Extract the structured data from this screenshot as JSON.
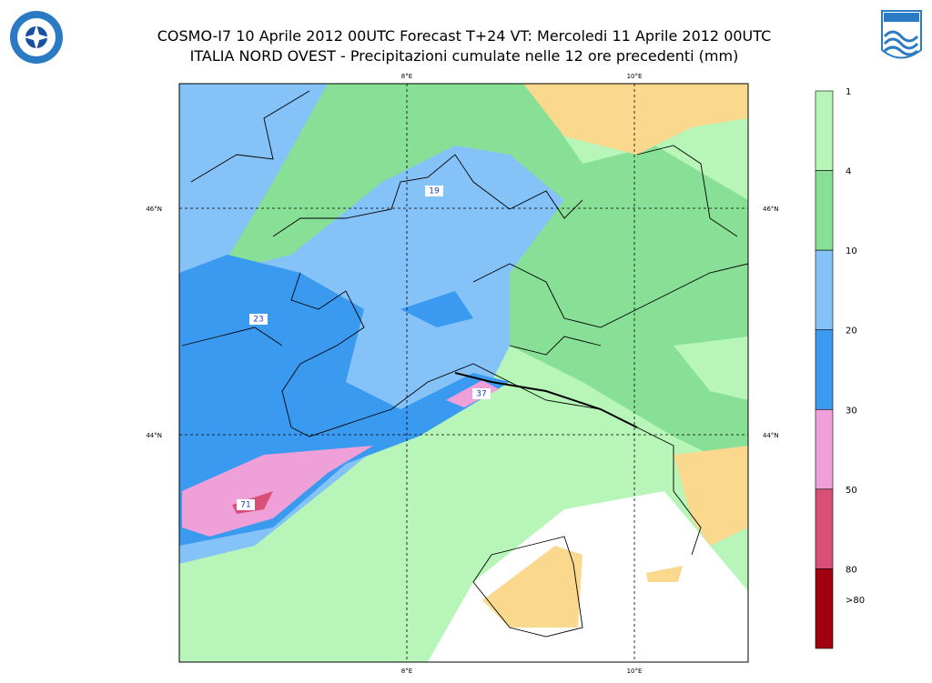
{
  "header": {
    "title_line_1": "COSMO-I7 10 Aprile 2012 00UTC Forecast T+24 VT: Mercoledi 11 Aprile 2012 00UTC",
    "title_line_2": "ITALIA NORD OVEST - Precipitazioni cumulate nelle 12 ore precedenti (mm)"
  },
  "map": {
    "longitudes": [
      "8°E",
      "10°E"
    ],
    "latitudes": [
      "46°N",
      "44°N"
    ],
    "point_labels": [
      "19",
      "23",
      "37",
      "71"
    ]
  },
  "legend": {
    "labels": [
      "1",
      "4",
      "10",
      "20",
      "30",
      "50",
      "80",
      ">80"
    ],
    "colors": [
      "#b8f5b8",
      "#88e096",
      "#84c2f8",
      "#3a9af0",
      "#f0a0d8",
      "#d85078",
      "#a00010"
    ]
  }
}
